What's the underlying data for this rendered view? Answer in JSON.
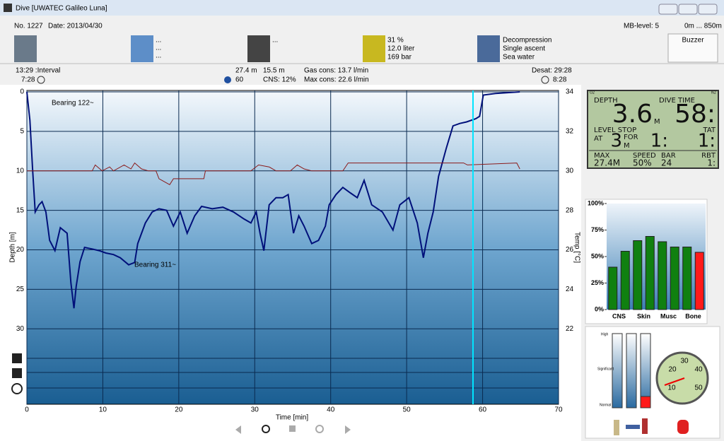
{
  "window": {
    "title": "Dive  [UWATEC Galileo Luna]"
  },
  "header": {
    "number": "No. 1227",
    "date": "Date: 2013/04/30",
    "weather": [
      "...",
      "...",
      "..."
    ],
    "equipment": "...",
    "tank": [
      "31 %",
      "12.0 liter",
      "169 bar"
    ],
    "dive_info": [
      "Decompression",
      "Single ascent",
      "Sea water"
    ],
    "mb_level": "MB-level: 5",
    "altitude": "0m ... 850m",
    "buzzer": "Buzzer"
  },
  "info": {
    "interval": "13:29 :Interval",
    "surface_time": "7:28",
    "max_depth": "27.4 m",
    "avg_depth": "15.5 m",
    "gas_cons": "Gas cons: 13.7 l/min",
    "cns_time": "60",
    "cns": "CNS: 12%",
    "max_cons": "Max cons: 22.6 l/min",
    "desat": "Desat: 29:28",
    "no_fly": "8:28"
  },
  "profile": {
    "type": "line",
    "x_label": "Time [min]",
    "y_label": "Depth [m]",
    "y2_label": "Temp [°C]",
    "xlim": [
      0,
      70
    ],
    "xticks": [
      0,
      10,
      20,
      30,
      40,
      50,
      60,
      70
    ],
    "ylim": [
      0,
      40
    ],
    "y_inverted": true,
    "yticks": [
      0,
      5,
      10,
      15,
      20,
      25,
      30
    ],
    "y2lim": [
      18,
      34
    ],
    "y2ticks": [
      22,
      24,
      26,
      28,
      30,
      32,
      34
    ],
    "grid": true,
    "annotations": [
      "Bearing 122~",
      "Bearing 311~"
    ],
    "series": [
      {
        "color": "#00107a",
        "x": [
          0,
          0.4,
          0.75,
          1.1,
          1.6,
          2,
          2.5,
          3,
          3.7,
          4.4,
          5.3,
          5.8,
          6.2,
          6.5,
          7,
          7.6,
          8.6,
          9.5,
          10.4,
          11.4,
          12.3,
          13.4,
          14.2,
          14.6,
          15.6,
          16.5,
          17.4,
          18.4,
          19.3,
          20.2,
          21.1,
          22.1,
          23,
          24.4,
          25.8,
          27.2,
          28.6,
          29.5,
          30.2,
          30.7,
          31.2,
          31.9,
          32.8,
          33.7,
          34.4,
          35.1,
          35.8,
          36.5,
          37.5,
          38.4,
          39.3,
          39.8,
          40.7,
          41.6,
          42.6,
          43.5,
          44.4,
          45.4,
          46.8,
          48.2,
          49.1,
          50.3,
          51.4,
          52.2,
          52.8,
          53.5,
          54.2,
          55.2,
          56.1,
          57,
          57.9,
          59.1,
          59.6,
          60.1,
          61.7,
          64.9
        ],
        "values": [
          0,
          3.6,
          9.8,
          15.2,
          14.3,
          13.9,
          15.2,
          18.8,
          20.1,
          17.2,
          17.9,
          24.2,
          27.4,
          24.6,
          21.5,
          19.7,
          19.9,
          20.1,
          20.4,
          20.6,
          21,
          21.9,
          21.6,
          19.2,
          16.6,
          15.2,
          14.8,
          15,
          17,
          15.2,
          17.9,
          15.7,
          14.5,
          14.8,
          14.6,
          15.2,
          16.1,
          16.6,
          15.2,
          17.9,
          20.1,
          14.3,
          13.4,
          13.4,
          13,
          17.9,
          15.7,
          17,
          19.2,
          18.8,
          17,
          14.3,
          13,
          12.1,
          12.8,
          13.4,
          11.2,
          14.3,
          15.2,
          17.5,
          14.3,
          13.4,
          16.6,
          21,
          17.9,
          15.2,
          10.7,
          7.2,
          4.3,
          4,
          3.8,
          3.4,
          3.1,
          0.4,
          0.2,
          0
        ]
      },
      {
        "color": "#8b1a1a",
        "axis": "y2",
        "x": [
          0,
          8.6,
          9,
          9.9,
          10.9,
          11.4,
          12.8,
          13.7,
          14.2,
          15.1,
          16,
          17,
          17.4,
          18.8,
          19.3,
          23.3,
          23.5,
          29.5,
          30.5,
          31.9,
          32.8,
          34.7,
          35.6,
          36.5,
          37.5,
          41.6,
          42.3,
          57.5,
          58,
          64.5,
          64.9
        ],
        "values": [
          30,
          30,
          30.3,
          30,
          30.2,
          30,
          30.3,
          30.1,
          30.4,
          30.1,
          30,
          30,
          29.6,
          29.3,
          29.6,
          29.6,
          30,
          30,
          30.3,
          30.2,
          30,
          30,
          30.3,
          30.1,
          30,
          30,
          30.4,
          30.4,
          30.3,
          30.4,
          30.1
        ]
      }
    ]
  },
  "lcd": {
    "o2": "O2",
    "n2": "N2",
    "depth_label": "DEPTH",
    "dive_time_label": "DIVE TIME",
    "depth": "3.6",
    "depth_unit": "M",
    "dive_time": "58:",
    "level_stop": "LEVEL STOP",
    "at": "AT",
    "stop_depth": "3",
    "for": "FOR",
    "stop_unit": "M",
    "stop_time": "1:",
    "tat_label": "TAT",
    "tat": "1:",
    "max_label": "MAX",
    "speed_label": "SPEED",
    "bar_label": "BAR",
    "rbt_label": "RBT",
    "max": "27.4M",
    "speed": "50%",
    "bar": "24",
    "rbt": "1:"
  },
  "tissue": {
    "type": "bar",
    "categories": [
      "CNS",
      null,
      "Skin",
      null,
      "Musc",
      null,
      "Bone",
      null
    ],
    "values": [
      40,
      55,
      65,
      69,
      64,
      59,
      59,
      54
    ],
    "colors": [
      "#108010",
      "#108010",
      "#108010",
      "#108010",
      "#108010",
      "#108010",
      "#108010",
      "#ff1a1a"
    ],
    "ylim": [
      0,
      100
    ],
    "yticks": [
      {
        "value": 0,
        "label": "0%"
      },
      {
        "value": 25,
        "label": "25%"
      },
      {
        "value": 50,
        "label": "50%"
      },
      {
        "value": 75,
        "label": "75%"
      },
      {
        "value": 100,
        "label": "100%"
      }
    ]
  },
  "gauges": {
    "levels": [
      "High",
      "Significant",
      "Normal"
    ],
    "dial": [
      "10",
      "20",
      "30",
      "40",
      "50"
    ]
  }
}
